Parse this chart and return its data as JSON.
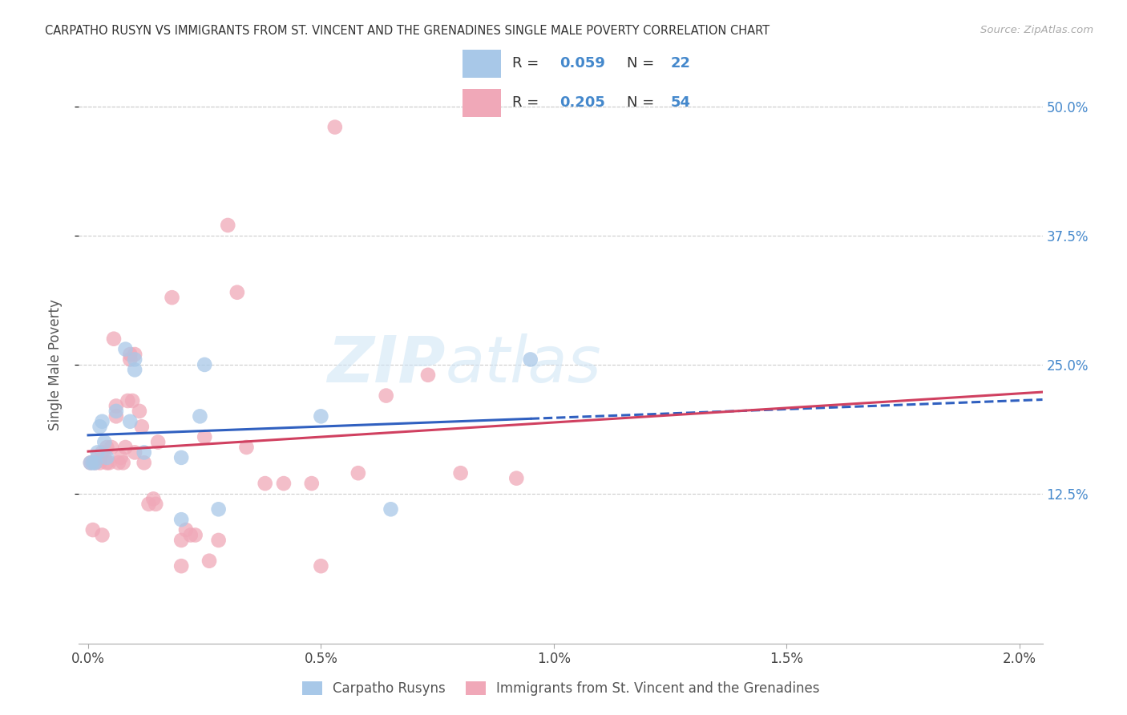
{
  "title": "CARPATHO RUSYN VS IMMIGRANTS FROM ST. VINCENT AND THE GRENADINES SINGLE MALE POVERTY CORRELATION CHART",
  "source": "Source: ZipAtlas.com",
  "ylabel": "Single Male Poverty",
  "xlabel_ticks": [
    "0.0%",
    "0.5%",
    "1.0%",
    "1.5%",
    "2.0%"
  ],
  "xlabel_vals": [
    0.0,
    0.005,
    0.01,
    0.015,
    0.02
  ],
  "ytick_labels": [
    "12.5%",
    "25.0%",
    "37.5%",
    "50.0%"
  ],
  "ytick_vals": [
    0.125,
    0.25,
    0.375,
    0.5
  ],
  "xmin": -0.0002,
  "xmax": 0.0205,
  "ymin": -0.02,
  "ymax": 0.52,
  "R_blue": 0.059,
  "N_blue": 22,
  "R_pink": 0.205,
  "N_pink": 54,
  "legend_label_blue": "Carpatho Rusyns",
  "legend_label_pink": "Immigrants from St. Vincent and the Grenadines",
  "color_blue": "#a8c8e8",
  "color_pink": "#f0a8b8",
  "line_color_blue": "#3060c0",
  "line_color_pink": "#d04060",
  "watermark_zip": "ZIP",
  "watermark_atlas": "atlas",
  "blue_x": [
    5e-05,
    0.0001,
    0.00015,
    0.0002,
    0.00025,
    0.0003,
    0.00035,
    0.0004,
    0.0006,
    0.0008,
    0.0009,
    0.001,
    0.001,
    0.0012,
    0.002,
    0.002,
    0.0024,
    0.0025,
    0.0028,
    0.005,
    0.0065,
    0.0095
  ],
  "blue_y": [
    0.155,
    0.155,
    0.155,
    0.165,
    0.19,
    0.195,
    0.175,
    0.16,
    0.205,
    0.265,
    0.195,
    0.255,
    0.245,
    0.165,
    0.16,
    0.1,
    0.2,
    0.25,
    0.11,
    0.2,
    0.11,
    0.255
  ],
  "pink_x": [
    5e-05,
    0.0001,
    0.00015,
    0.0002,
    0.00025,
    0.0003,
    0.0003,
    0.00035,
    0.0004,
    0.0004,
    0.00045,
    0.0005,
    0.00055,
    0.0006,
    0.0006,
    0.00065,
    0.0007,
    0.00075,
    0.0008,
    0.00085,
    0.0009,
    0.0009,
    0.00095,
    0.001,
    0.001,
    0.0011,
    0.00115,
    0.0012,
    0.0013,
    0.0014,
    0.00145,
    0.0015,
    0.0018,
    0.002,
    0.002,
    0.0021,
    0.0022,
    0.0023,
    0.0025,
    0.0026,
    0.0028,
    0.003,
    0.0032,
    0.0034,
    0.0038,
    0.0042,
    0.0048,
    0.005,
    0.0053,
    0.0058,
    0.0064,
    0.0073,
    0.008,
    0.0092
  ],
  "pink_y": [
    0.155,
    0.09,
    0.155,
    0.16,
    0.155,
    0.085,
    0.165,
    0.16,
    0.155,
    0.17,
    0.155,
    0.17,
    0.275,
    0.2,
    0.21,
    0.155,
    0.16,
    0.155,
    0.17,
    0.215,
    0.255,
    0.26,
    0.215,
    0.26,
    0.165,
    0.205,
    0.19,
    0.155,
    0.115,
    0.12,
    0.115,
    0.175,
    0.315,
    0.08,
    0.055,
    0.09,
    0.085,
    0.085,
    0.18,
    0.06,
    0.08,
    0.385,
    0.32,
    0.17,
    0.135,
    0.135,
    0.135,
    0.055,
    0.48,
    0.145,
    0.22,
    0.24,
    0.145,
    0.14
  ],
  "blue_trend_x_end": 0.0095,
  "blue_trend_x_start": 0.0,
  "pink_trend_x_start": 0.0,
  "pink_trend_x_end": 0.0205
}
